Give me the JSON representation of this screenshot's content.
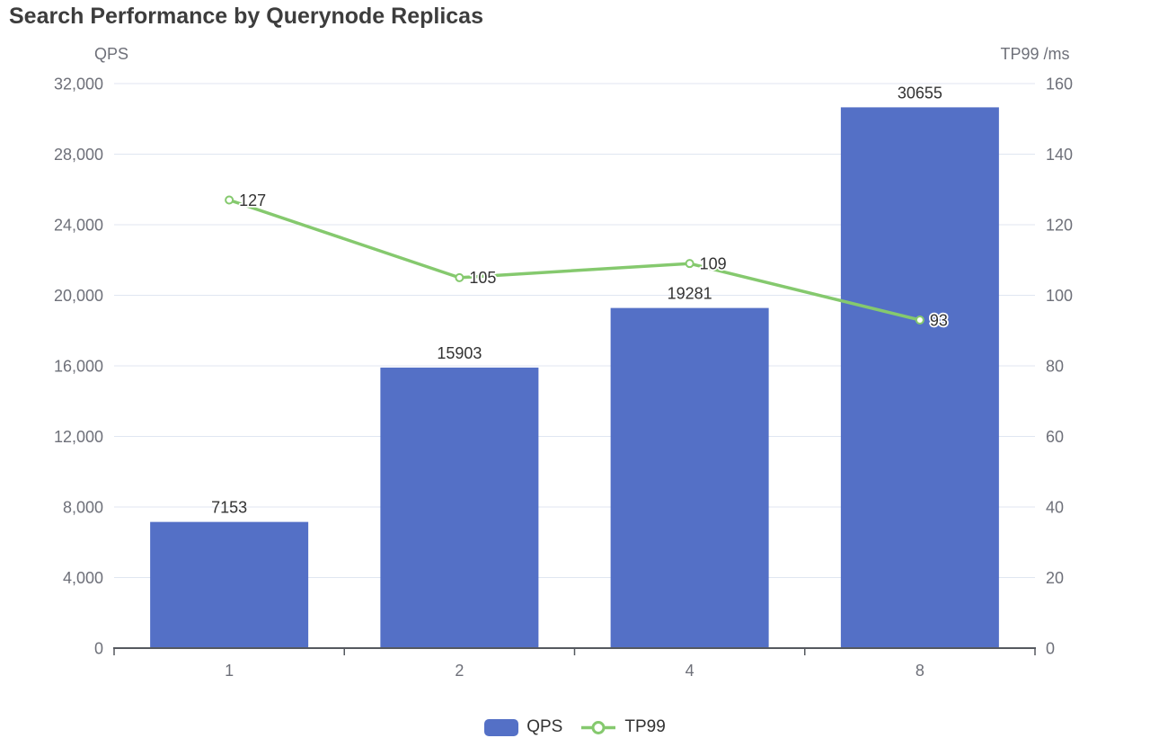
{
  "chart_data": {
    "type": "bar",
    "title": "Search Performance by Querynode Replicas",
    "categories": [
      "1",
      "2",
      "4",
      "8"
    ],
    "series": [
      {
        "name": "QPS",
        "type": "bar",
        "axis": "left",
        "color": "#5470C6",
        "values": [
          7153,
          15903,
          19281,
          30655
        ],
        "labels": [
          "7153",
          "15903",
          "19281",
          "30655"
        ]
      },
      {
        "name": "TP99",
        "type": "line",
        "axis": "right",
        "color": "#85C96E",
        "values": [
          127,
          105,
          109,
          93
        ],
        "labels": [
          "127",
          "105",
          "109",
          "93"
        ]
      }
    ],
    "left_axis": {
      "name": "QPS",
      "min": 0,
      "max": 32000,
      "tick_step": 4000,
      "ticks": [
        "0",
        "4,000",
        "8,000",
        "12,000",
        "16,000",
        "20,000",
        "24,000",
        "28,000",
        "32,000"
      ]
    },
    "right_axis": {
      "name": "TP99 /ms",
      "min": 0,
      "max": 160,
      "tick_step": 20,
      "ticks": [
        "0",
        "20",
        "40",
        "60",
        "80",
        "100",
        "120",
        "140",
        "160"
      ]
    },
    "legend": {
      "position": "bottom",
      "items": [
        "QPS",
        "TP99"
      ]
    },
    "grid": true,
    "colors": {
      "grid_line": "#E0E6F1",
      "axis_line": "#55595F",
      "tick_label": "#6E7079",
      "data_label": "#333333",
      "title": "#3D3D3D",
      "background": "#FFFFFF"
    }
  }
}
